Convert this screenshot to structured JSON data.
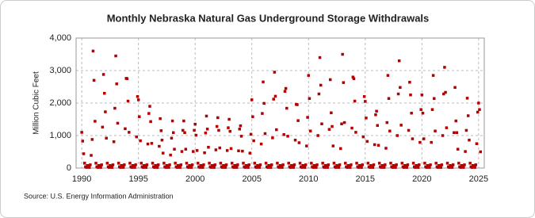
{
  "chart_data": {
    "type": "scatter",
    "title": "Monthly Nebraska Natural  Gas Underground Storage Withdrawals",
    "y_label": "Million Cubic Feet",
    "source": "Source: U.S. Energy Information Administration",
    "color": "#b30000",
    "grid": true,
    "xlim": [
      1989.5,
      2025.5
    ],
    "xticks": [
      1990,
      1995,
      2000,
      2005,
      2010,
      2015,
      2020,
      2025
    ],
    "ylim": [
      0,
      4000
    ],
    "yticks": [
      0,
      {
        "value": 1000,
        "label": "1,000"
      },
      {
        "value": 2000,
        "label": "2,000"
      },
      {
        "value": 3000,
        "label": "3,000"
      },
      {
        "value": 4000,
        "label": "4,000"
      }
    ],
    "x": [
      1990,
      1990.08,
      1990.17,
      1990.25,
      1990.33,
      1990.42,
      1990.5,
      1990.58,
      1990.67,
      1990.75,
      1990.83,
      1990.92,
      1991,
      1991.08,
      1991.17,
      1991.25,
      1991.33,
      1991.42,
      1991.5,
      1991.58,
      1991.67,
      1991.75,
      1991.83,
      1991.92,
      1992,
      1992.08,
      1992.17,
      1992.25,
      1992.33,
      1992.42,
      1992.5,
      1992.58,
      1992.67,
      1992.75,
      1992.83,
      1992.92,
      1993,
      1993.08,
      1993.17,
      1993.25,
      1993.33,
      1993.42,
      1993.5,
      1993.58,
      1993.67,
      1993.75,
      1993.83,
      1993.92,
      1994,
      1994.08,
      1994.17,
      1994.25,
      1994.33,
      1994.42,
      1994.5,
      1994.58,
      1994.67,
      1994.75,
      1994.83,
      1994.92,
      1995,
      1995.08,
      1995.17,
      1995.25,
      1995.33,
      1995.42,
      1995.5,
      1995.58,
      1995.67,
      1995.75,
      1995.83,
      1995.92,
      1996,
      1996.08,
      1996.17,
      1996.25,
      1996.33,
      1996.42,
      1996.5,
      1996.58,
      1996.67,
      1996.75,
      1996.83,
      1996.92,
      1997,
      1997.08,
      1997.17,
      1997.25,
      1997.33,
      1997.42,
      1997.5,
      1997.58,
      1997.67,
      1997.75,
      1997.83,
      1997.92,
      1998,
      1998.08,
      1998.17,
      1998.25,
      1998.33,
      1998.42,
      1998.5,
      1998.58,
      1998.67,
      1998.75,
      1998.83,
      1998.92,
      1999,
      1999.08,
      1999.17,
      1999.25,
      1999.33,
      1999.42,
      1999.5,
      1999.58,
      1999.67,
      1999.75,
      1999.83,
      1999.92,
      2000,
      2000.08,
      2000.17,
      2000.25,
      2000.33,
      2000.42,
      2000.5,
      2000.58,
      2000.67,
      2000.75,
      2000.83,
      2000.92,
      2001,
      2001.08,
      2001.17,
      2001.25,
      2001.33,
      2001.42,
      2001.5,
      2001.58,
      2001.67,
      2001.75,
      2001.83,
      2001.92,
      2002,
      2002.08,
      2002.17,
      2002.25,
      2002.33,
      2002.42,
      2002.5,
      2002.58,
      2002.67,
      2002.75,
      2002.83,
      2002.92,
      2003,
      2003.08,
      2003.17,
      2003.25,
      2003.33,
      2003.42,
      2003.5,
      2003.58,
      2003.67,
      2003.75,
      2003.83,
      2003.92,
      2004,
      2004.08,
      2004.17,
      2004.25,
      2004.33,
      2004.42,
      2004.5,
      2004.58,
      2004.67,
      2004.75,
      2004.83,
      2004.92,
      2005,
      2005.08,
      2005.17,
      2005.25,
      2005.33,
      2005.42,
      2005.5,
      2005.58,
      2005.67,
      2005.75,
      2005.83,
      2005.92,
      2006,
      2006.08,
      2006.17,
      2006.25,
      2006.33,
      2006.42,
      2006.5,
      2006.58,
      2006.67,
      2006.75,
      2006.83,
      2006.92,
      2007,
      2007.08,
      2007.17,
      2007.25,
      2007.33,
      2007.42,
      2007.5,
      2007.58,
      2007.67,
      2007.75,
      2007.83,
      2007.92,
      2008,
      2008.08,
      2008.17,
      2008.25,
      2008.33,
      2008.42,
      2008.5,
      2008.58,
      2008.67,
      2008.75,
      2008.83,
      2008.92,
      2009,
      2009.08,
      2009.17,
      2009.25,
      2009.33,
      2009.42,
      2009.5,
      2009.58,
      2009.67,
      2009.75,
      2009.83,
      2009.92,
      2010,
      2010.08,
      2010.17,
      2010.25,
      2010.33,
      2010.42,
      2010.5,
      2010.58,
      2010.67,
      2010.75,
      2010.83,
      2010.92,
      2011,
      2011.08,
      2011.17,
      2011.25,
      2011.33,
      2011.42,
      2011.5,
      2011.58,
      2011.67,
      2011.75,
      2011.83,
      2011.92,
      2012,
      2012.08,
      2012.17,
      2012.25,
      2012.33,
      2012.42,
      2012.5,
      2012.58,
      2012.67,
      2012.75,
      2012.83,
      2012.92,
      2013,
      2013.08,
      2013.17,
      2013.25,
      2013.33,
      2013.42,
      2013.5,
      2013.58,
      2013.67,
      2013.75,
      2013.83,
      2013.92,
      2014,
      2014.08,
      2014.17,
      2014.25,
      2014.33,
      2014.42,
      2014.5,
      2014.58,
      2014.67,
      2014.75,
      2014.83,
      2014.92,
      2015,
      2015.08,
      2015.17,
      2015.25,
      2015.33,
      2015.42,
      2015.5,
      2015.58,
      2015.67,
      2015.75,
      2015.83,
      2015.92,
      2016,
      2016.08,
      2016.17,
      2016.25,
      2016.33,
      2016.42,
      2016.5,
      2016.58,
      2016.67,
      2016.75,
      2016.83,
      2016.92,
      2017,
      2017.08,
      2017.17,
      2017.25,
      2017.33,
      2017.42,
      2017.5,
      2017.58,
      2017.67,
      2017.75,
      2017.83,
      2017.92,
      2018,
      2018.08,
      2018.17,
      2018.25,
      2018.33,
      2018.42,
      2018.5,
      2018.58,
      2018.67,
      2018.75,
      2018.83,
      2018.92,
      2019,
      2019.08,
      2019.17,
      2019.25,
      2019.33,
      2019.42,
      2019.5,
      2019.58,
      2019.67,
      2019.75,
      2019.83,
      2019.92,
      2020,
      2020.08,
      2020.17,
      2020.25,
      2020.33,
      2020.42,
      2020.5,
      2020.58,
      2020.67,
      2020.75,
      2020.83,
      2020.92,
      2021,
      2021.08,
      2021.17,
      2021.25,
      2021.33,
      2021.42,
      2021.5,
      2021.58,
      2021.67,
      2021.75,
      2021.83,
      2021.92,
      2022,
      2022.08,
      2022.17,
      2022.25,
      2022.33,
      2022.42,
      2022.5,
      2022.58,
      2022.67,
      2022.75,
      2022.83,
      2022.92,
      2023,
      2023.08,
      2023.17,
      2023.25,
      2023.33,
      2023.42,
      2023.5,
      2023.58,
      2023.67,
      2023.75,
      2023.83,
      2023.92,
      2024,
      2024.08,
      2024.17,
      2024.25,
      2024.33,
      2024.42,
      2024.5,
      2024.58,
      2024.67,
      2024.75,
      2024.83,
      2024.92,
      2025,
      2025.08,
      2025.17
    ],
    "values": [
      1100,
      830,
      440,
      150,
      40,
      20,
      80,
      60,
      20,
      100,
      390,
      880,
      3600,
      2700,
      1440,
      150,
      40,
      20,
      80,
      60,
      20,
      100,
      1260,
      2880,
      2300,
      1730,
      920,
      150,
      40,
      20,
      80,
      60,
      20,
      100,
      810,
      1840,
      3450,
      2590,
      1380,
      150,
      40,
      20,
      80,
      60,
      20,
      100,
      1210,
      2760,
      2750,
      2060,
      1100,
      150,
      40,
      20,
      80,
      60,
      20,
      100,
      960,
      2200,
      2100,
      1580,
      840,
      150,
      40,
      20,
      80,
      60,
      20,
      100,
      740,
      1680,
      1900,
      1430,
      760,
      150,
      40,
      20,
      80,
      60,
      20,
      100,
      670,
      1520,
      1150,
      860,
      460,
      150,
      40,
      20,
      80,
      60,
      20,
      100,
      400,
      920,
      1450,
      1090,
      580,
      150,
      40,
      20,
      80,
      60,
      20,
      100,
      510,
      1160,
      1450,
      1090,
      580,
      150,
      40,
      20,
      80,
      60,
      20,
      100,
      510,
      1160,
      1350,
      1010,
      540,
      150,
      40,
      20,
      80,
      60,
      20,
      100,
      470,
      1080,
      1600,
      1200,
      640,
      150,
      40,
      20,
      80,
      60,
      20,
      100,
      560,
      1280,
      1550,
      1160,
      620,
      150,
      40,
      20,
      80,
      60,
      20,
      100,
      540,
      1240,
      1500,
      1130,
      600,
      150,
      40,
      20,
      80,
      60,
      20,
      100,
      530,
      1200,
      1300,
      980,
      520,
      150,
      40,
      20,
      80,
      60,
      20,
      100,
      460,
      1040,
      2100,
      1580,
      840,
      150,
      40,
      20,
      80,
      60,
      20,
      100,
      740,
      1680,
      2650,
      1990,
      1060,
      150,
      40,
      20,
      80,
      60,
      20,
      100,
      930,
      2120,
      2950,
      2210,
      1180,
      150,
      40,
      20,
      80,
      60,
      20,
      100,
      1030,
      2360,
      2450,
      1840,
      980,
      150,
      40,
      20,
      80,
      60,
      20,
      100,
      860,
      1960,
      1950,
      1460,
      780,
      150,
      40,
      20,
      80,
      60,
      20,
      100,
      680,
      1560,
      2850,
      2140,
      1140,
      150,
      40,
      20,
      80,
      60,
      20,
      100,
      1000,
      2280,
      3400,
      2550,
      1360,
      150,
      40,
      20,
      80,
      60,
      20,
      100,
      1190,
      2720,
      1700,
      1280,
      680,
      150,
      40,
      20,
      80,
      60,
      20,
      100,
      600,
      1360,
      3500,
      2630,
      1400,
      150,
      40,
      20,
      80,
      60,
      20,
      100,
      1230,
      2800,
      2750,
      2060,
      1100,
      150,
      40,
      20,
      80,
      60,
      20,
      100,
      960,
      2200,
      2050,
      1540,
      820,
      150,
      40,
      20,
      80,
      60,
      20,
      100,
      720,
      1640,
      1750,
      1310,
      700,
      150,
      40,
      20,
      80,
      60,
      20,
      100,
      610,
      1400,
      2850,
      2140,
      1140,
      150,
      40,
      20,
      80,
      60,
      20,
      100,
      1000,
      2280,
      3300,
      2480,
      1320,
      150,
      40,
      20,
      80,
      60,
      20,
      100,
      1160,
      2640,
      2250,
      1690,
      900,
      150,
      40,
      20,
      80,
      60,
      20,
      100,
      790,
      1800,
      2250,
      1690,
      900,
      150,
      40,
      20,
      80,
      60,
      20,
      100,
      790,
      1800,
      2850,
      2140,
      1140,
      150,
      40,
      20,
      80,
      60,
      20,
      100,
      1000,
      2280,
      3100,
      2330,
      1240,
      150,
      40,
      20,
      80,
      60,
      20,
      100,
      1090,
      2480,
      1450,
      1090,
      580,
      150,
      40,
      20,
      80,
      60,
      20,
      100,
      510,
      1160,
      2150,
      1610,
      860,
      150,
      40,
      20,
      80,
      60,
      20,
      100,
      750,
      1720,
      2000,
      1800,
      500
    ]
  }
}
